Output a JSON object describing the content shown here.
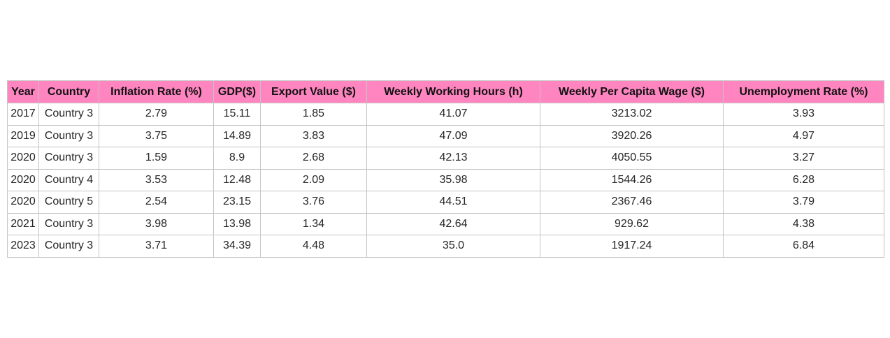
{
  "chart_data": {
    "type": "table",
    "header_color": "#ff85c0",
    "border_color": "#c4c4c4",
    "columns": [
      "Year",
      "Country",
      "Inflation Rate (%)",
      "GDP($)",
      "Export Value ($)",
      "Weekly Working Hours (h)",
      "Weekly Per Capita Wage ($)",
      "Unemployment Rate (%)"
    ],
    "rows": [
      [
        "2017",
        "Country 3",
        "2.79",
        "15.11",
        "1.85",
        "41.07",
        "3213.02",
        "3.93"
      ],
      [
        "2019",
        "Country 3",
        "3.75",
        "14.89",
        "3.83",
        "47.09",
        "3920.26",
        "4.97"
      ],
      [
        "2020",
        "Country 3",
        "1.59",
        "8.9",
        "2.68",
        "42.13",
        "4050.55",
        "3.27"
      ],
      [
        "2020",
        "Country 4",
        "3.53",
        "12.48",
        "2.09",
        "35.98",
        "1544.26",
        "6.28"
      ],
      [
        "2020",
        "Country 5",
        "2.54",
        "23.15",
        "3.76",
        "44.51",
        "2367.46",
        "3.79"
      ],
      [
        "2021",
        "Country 3",
        "3.98",
        "13.98",
        "1.34",
        "42.64",
        "929.62",
        "4.38"
      ],
      [
        "2023",
        "Country 3",
        "3.71",
        "34.39",
        "4.48",
        "35.0",
        "1917.24",
        "6.84"
      ]
    ]
  }
}
